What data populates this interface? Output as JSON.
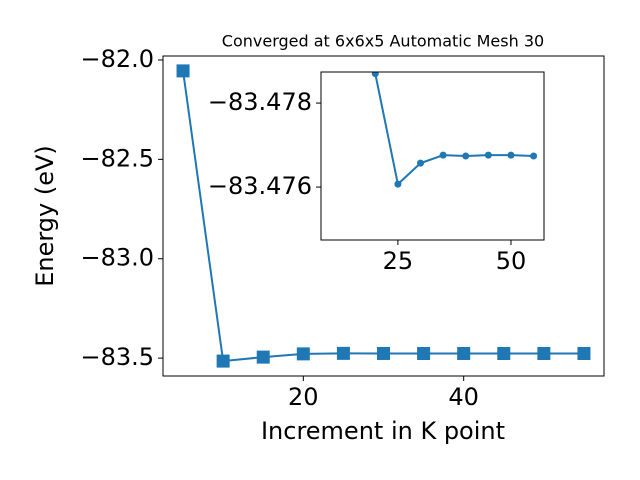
{
  "chart_data": [
    {
      "type": "line",
      "title": "Converged at 6x6x5 Automatic Mesh 30",
      "x_label": "Increment in K point",
      "y_label": "Energy (eV)",
      "x": [
        5,
        10,
        15,
        20,
        25,
        30,
        35,
        40,
        45,
        50,
        55
      ],
      "series": [
        {
          "name": "Energy",
          "color": "#1f77b4",
          "marker": "square",
          "values": [
            -82.055,
            -83.515,
            -83.495,
            -83.4787,
            -83.4761,
            -83.4766,
            -83.4768,
            -83.4767,
            -83.4768,
            -83.4768,
            -83.4767
          ]
        }
      ],
      "xlim": [
        2.5,
        57.5
      ],
      "xticks": [
        20,
        40
      ],
      "ylim": [
        -83.59,
        -81.98
      ],
      "yticks": [
        {
          "value": -83.5,
          "label": "−83.5"
        },
        {
          "value": -83.0,
          "label": "−83.0"
        },
        {
          "value": -82.5,
          "label": "−82.5"
        },
        {
          "value": -82.0,
          "label": "−82.0"
        }
      ]
    },
    {
      "type": "line",
      "x": [
        20,
        25,
        30,
        35,
        40,
        45,
        50,
        55
      ],
      "series": [
        {
          "name": "Energy",
          "color": "#1f77b4",
          "marker": "circle",
          "values": [
            -83.4787,
            -83.47607,
            -83.47657,
            -83.47676,
            -83.47674,
            -83.47676,
            -83.47676,
            -83.47674
          ]
        }
      ],
      "xlim": [
        8,
        57.3
      ],
      "xticks": [
        25,
        50
      ],
      "ylim": [
        -83.47474,
        -83.47874
      ],
      "yticks": [
        {
          "value": -83.478,
          "label": "−83.478"
        },
        {
          "value": -83.476,
          "label": "−83.476"
        }
      ]
    }
  ]
}
